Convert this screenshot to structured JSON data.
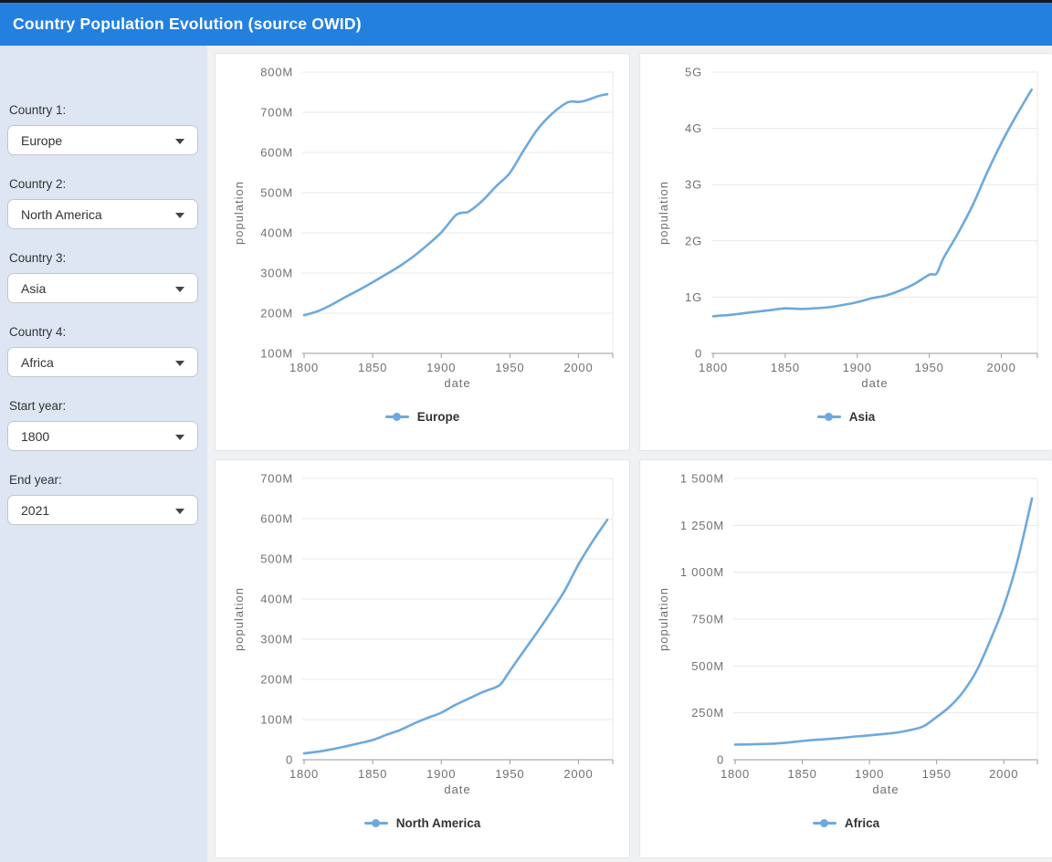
{
  "header": {
    "title": "Country Population Evolution (source OWID)"
  },
  "sidebar": {
    "controls": [
      {
        "label": "Country 1:",
        "value": "Europe"
      },
      {
        "label": "Country 2:",
        "value": "North America"
      },
      {
        "label": "Country 3:",
        "value": "Asia"
      },
      {
        "label": "Country 4:",
        "value": "Africa"
      },
      {
        "label": "Start year:",
        "value": "1800"
      },
      {
        "label": "End year:",
        "value": "2021"
      }
    ]
  },
  "colors": {
    "header_bg": "#2480df",
    "top_strip": "#171721",
    "sidebar_bg": "#dde6f2",
    "main_bg": "#f0f1f2",
    "card_border": "#e3e4e6",
    "line": "#6da9dc",
    "grid": "#e8e8e8",
    "axis": "#9a9a9a",
    "tick_text": "#717171"
  },
  "chart_data": [
    {
      "type": "line",
      "series_name": "Europe",
      "xlabel": "date",
      "ylabel": "population",
      "unit": "M",
      "legend_position": "bottom-center",
      "grid": "horizontal",
      "x_domain": [
        1800,
        2025
      ],
      "x_ticks": [
        1800,
        1850,
        1900,
        1950,
        2000
      ],
      "y_domain": [
        100,
        800
      ],
      "y_ticks": [
        {
          "v": 800,
          "label": "800M"
        },
        {
          "v": 700,
          "label": "700M"
        },
        {
          "v": 600,
          "label": "600M"
        },
        {
          "v": 500,
          "label": "500M"
        },
        {
          "v": 400,
          "label": "400M"
        },
        {
          "v": 300,
          "label": "300M"
        },
        {
          "v": 200,
          "label": "200M"
        },
        {
          "v": 100,
          "label": "100M"
        }
      ],
      "x": [
        1800,
        1810,
        1820,
        1830,
        1840,
        1850,
        1860,
        1870,
        1880,
        1890,
        1900,
        1910,
        1915,
        1920,
        1930,
        1940,
        1950,
        1960,
        1970,
        1980,
        1990,
        1995,
        2000,
        2005,
        2010,
        2015,
        2021
      ],
      "y": [
        195,
        205,
        221,
        240,
        258,
        277,
        297,
        318,
        342,
        370,
        401,
        442,
        450,
        453,
        480,
        516,
        549,
        605,
        657,
        694,
        721,
        727,
        726,
        729,
        735,
        741,
        745
      ]
    },
    {
      "type": "line",
      "series_name": "Asia",
      "xlabel": "date",
      "ylabel": "population",
      "unit": "G",
      "legend_position": "bottom-center",
      "grid": "horizontal",
      "x_domain": [
        1800,
        2025
      ],
      "x_ticks": [
        1800,
        1850,
        1900,
        1950,
        2000
      ],
      "y_domain": [
        0,
        5
      ],
      "y_ticks": [
        {
          "v": 5,
          "label": "5G"
        },
        {
          "v": 4,
          "label": "4G"
        },
        {
          "v": 3,
          "label": "3G"
        },
        {
          "v": 2,
          "label": "2G"
        },
        {
          "v": 1,
          "label": "1G"
        },
        {
          "v": 0,
          "label": "0"
        }
      ],
      "x": [
        1800,
        1810,
        1820,
        1830,
        1840,
        1850,
        1860,
        1870,
        1880,
        1890,
        1900,
        1910,
        1920,
        1930,
        1940,
        1950,
        1955,
        1960,
        1970,
        1980,
        1990,
        2000,
        2010,
        2021
      ],
      "y": [
        0.66,
        0.68,
        0.71,
        0.74,
        0.77,
        0.8,
        0.79,
        0.8,
        0.82,
        0.86,
        0.91,
        0.98,
        1.03,
        1.12,
        1.24,
        1.4,
        1.42,
        1.7,
        2.14,
        2.63,
        3.21,
        3.74,
        4.21,
        4.69
      ]
    },
    {
      "type": "line",
      "series_name": "North America",
      "xlabel": "date",
      "ylabel": "population",
      "unit": "M",
      "legend_position": "bottom-center",
      "grid": "horizontal",
      "x_domain": [
        1800,
        2025
      ],
      "x_ticks": [
        1800,
        1850,
        1900,
        1950,
        2000
      ],
      "y_domain": [
        0,
        700
      ],
      "y_ticks": [
        {
          "v": 700,
          "label": "700M"
        },
        {
          "v": 600,
          "label": "600M"
        },
        {
          "v": 500,
          "label": "500M"
        },
        {
          "v": 400,
          "label": "400M"
        },
        {
          "v": 300,
          "label": "300M"
        },
        {
          "v": 200,
          "label": "200M"
        },
        {
          "v": 100,
          "label": "100M"
        },
        {
          "v": 0,
          "label": "0"
        }
      ],
      "x": [
        1800,
        1810,
        1820,
        1830,
        1840,
        1850,
        1860,
        1870,
        1880,
        1890,
        1900,
        1910,
        1920,
        1930,
        1940,
        1944,
        1950,
        1960,
        1970,
        1980,
        1990,
        2000,
        2010,
        2021
      ],
      "y": [
        16,
        20,
        26,
        33,
        41,
        49,
        62,
        74,
        90,
        104,
        117,
        136,
        152,
        168,
        181,
        191,
        221,
        270,
        318,
        368,
        421,
        486,
        542,
        597
      ]
    },
    {
      "type": "line",
      "series_name": "Africa",
      "xlabel": "date",
      "ylabel": "population",
      "unit": "M",
      "legend_position": "bottom-center",
      "grid": "horizontal",
      "x_domain": [
        1800,
        2025
      ],
      "x_ticks": [
        1800,
        1850,
        1900,
        1950,
        2000
      ],
      "y_domain": [
        0,
        1500
      ],
      "y_ticks": [
        {
          "v": 1500,
          "label": "1 500M"
        },
        {
          "v": 1250,
          "label": "1 250M"
        },
        {
          "v": 1000,
          "label": "1 000M"
        },
        {
          "v": 750,
          "label": "750M"
        },
        {
          "v": 500,
          "label": "500M"
        },
        {
          "v": 250,
          "label": "250M"
        },
        {
          "v": 0,
          "label": "0"
        }
      ],
      "x": [
        1800,
        1810,
        1820,
        1830,
        1840,
        1850,
        1860,
        1870,
        1880,
        1890,
        1900,
        1910,
        1920,
        1930,
        1940,
        1950,
        1960,
        1970,
        1980,
        1990,
        2000,
        2010,
        2021
      ],
      "y": [
        81,
        82,
        84,
        86,
        92,
        100,
        106,
        111,
        117,
        124,
        130,
        137,
        144,
        158,
        178,
        228,
        285,
        365,
        478,
        638,
        818,
        1055,
        1394
      ]
    }
  ]
}
